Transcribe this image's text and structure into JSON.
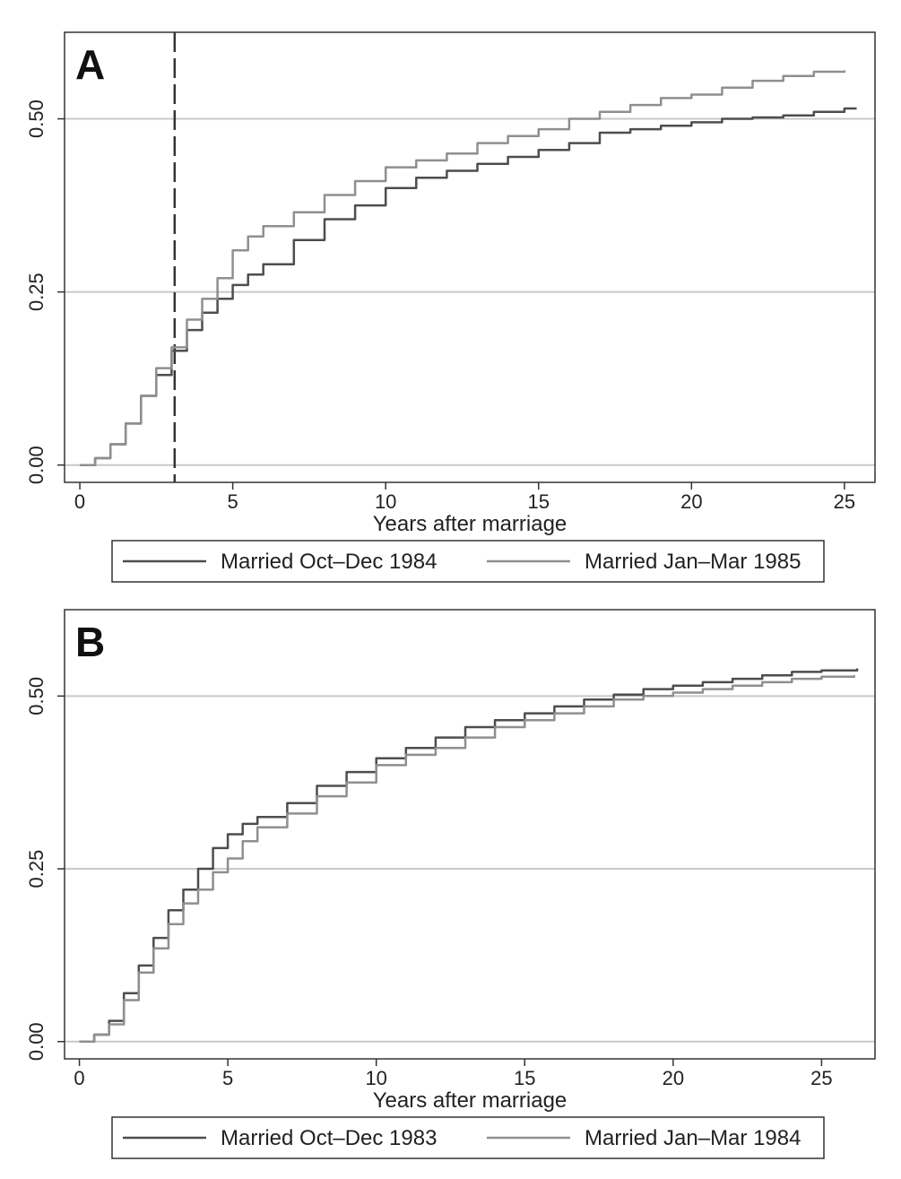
{
  "colors": {
    "dark_series": "#4d4d4d",
    "light_series": "#8f8f8f",
    "gridline": "#c8c8c8",
    "frame": "#333333",
    "marker": "#333333"
  },
  "chart_data": [
    {
      "type": "line",
      "panel_label": "A",
      "xlabel": "Years after marriage",
      "ylabel": "",
      "xlim": [
        -0.5,
        26
      ],
      "ylim": [
        -0.025,
        0.625
      ],
      "xticks": [
        0,
        5,
        10,
        15,
        20,
        25
      ],
      "yticks": [
        0,
        0.25,
        0.5
      ],
      "ytick_labels": [
        "0.00",
        "0.25",
        "0.50"
      ],
      "grid": "horizontal",
      "legend_position": "bottom",
      "vertical_marker_x": 3.1,
      "series": [
        {
          "name": "Married Oct–Dec 1984",
          "color_role": "dark",
          "x": [
            0,
            0.25,
            0.5,
            1,
            1.5,
            2,
            2.5,
            3,
            3.5,
            4,
            4.5,
            5,
            5.5,
            6,
            7,
            8,
            9,
            10,
            11,
            12,
            13,
            14,
            15,
            16,
            17,
            18,
            19,
            20,
            21,
            22,
            23,
            24,
            25,
            25.4
          ],
          "y": [
            0,
            0.0,
            0.01,
            0.03,
            0.06,
            0.1,
            0.13,
            0.165,
            0.195,
            0.22,
            0.24,
            0.26,
            0.275,
            0.29,
            0.325,
            0.355,
            0.375,
            0.4,
            0.415,
            0.425,
            0.435,
            0.445,
            0.455,
            0.465,
            0.48,
            0.485,
            0.49,
            0.495,
            0.5,
            0.502,
            0.505,
            0.51,
            0.515,
            0.515
          ]
        },
        {
          "name": "Married Jan–Mar 1985",
          "color_role": "light",
          "x": [
            0,
            0.25,
            0.5,
            1,
            1.5,
            2,
            2.5,
            3,
            3.5,
            4,
            4.5,
            5,
            5.5,
            6,
            7,
            8,
            9,
            10,
            11,
            12,
            13,
            14,
            15,
            16,
            17,
            18,
            19,
            20,
            21,
            22,
            23,
            24,
            25
          ],
          "y": [
            0,
            0.0,
            0.01,
            0.03,
            0.06,
            0.1,
            0.14,
            0.17,
            0.21,
            0.24,
            0.27,
            0.31,
            0.33,
            0.345,
            0.365,
            0.39,
            0.41,
            0.43,
            0.44,
            0.45,
            0.465,
            0.475,
            0.485,
            0.5,
            0.51,
            0.52,
            0.53,
            0.535,
            0.545,
            0.555,
            0.562,
            0.568,
            0.57
          ]
        }
      ]
    },
    {
      "type": "line",
      "panel_label": "B",
      "xlabel": "Years after marriage",
      "ylabel": "",
      "xlim": [
        -0.5,
        26.8
      ],
      "ylim": [
        -0.025,
        0.625
      ],
      "xticks": [
        0,
        5,
        10,
        15,
        20,
        25
      ],
      "yticks": [
        0,
        0.25,
        0.5
      ],
      "ytick_labels": [
        "0.00",
        "0.25",
        "0.50"
      ],
      "grid": "horizontal",
      "legend_position": "bottom",
      "series": [
        {
          "name": "Married Oct–Dec 1983",
          "color_role": "dark",
          "x": [
            0,
            0.25,
            0.5,
            1,
            1.5,
            2,
            2.5,
            3,
            3.5,
            4,
            4.5,
            5,
            5.5,
            6,
            7,
            8,
            9,
            10,
            11,
            12,
            13,
            14,
            15,
            16,
            17,
            18,
            19,
            20,
            21,
            22,
            23,
            24,
            25,
            26.2
          ],
          "y": [
            0,
            0.0,
            0.01,
            0.03,
            0.07,
            0.11,
            0.15,
            0.19,
            0.22,
            0.25,
            0.28,
            0.3,
            0.315,
            0.325,
            0.345,
            0.37,
            0.39,
            0.41,
            0.425,
            0.44,
            0.455,
            0.465,
            0.475,
            0.485,
            0.495,
            0.502,
            0.51,
            0.515,
            0.52,
            0.525,
            0.53,
            0.535,
            0.537,
            0.54
          ]
        },
        {
          "name": "Married Jan–Mar 1984",
          "color_role": "light",
          "x": [
            0,
            0.25,
            0.5,
            1,
            1.5,
            2,
            2.5,
            3,
            3.5,
            4,
            4.5,
            5,
            5.5,
            6,
            7,
            8,
            9,
            10,
            11,
            12,
            13,
            14,
            15,
            16,
            17,
            18,
            19,
            20,
            21,
            22,
            23,
            24,
            25,
            26.1
          ],
          "y": [
            0,
            0.0,
            0.01,
            0.025,
            0.06,
            0.1,
            0.135,
            0.17,
            0.2,
            0.22,
            0.245,
            0.265,
            0.29,
            0.31,
            0.33,
            0.355,
            0.375,
            0.4,
            0.415,
            0.425,
            0.44,
            0.455,
            0.465,
            0.475,
            0.485,
            0.495,
            0.5,
            0.505,
            0.51,
            0.515,
            0.52,
            0.525,
            0.528,
            0.53
          ]
        }
      ]
    }
  ]
}
